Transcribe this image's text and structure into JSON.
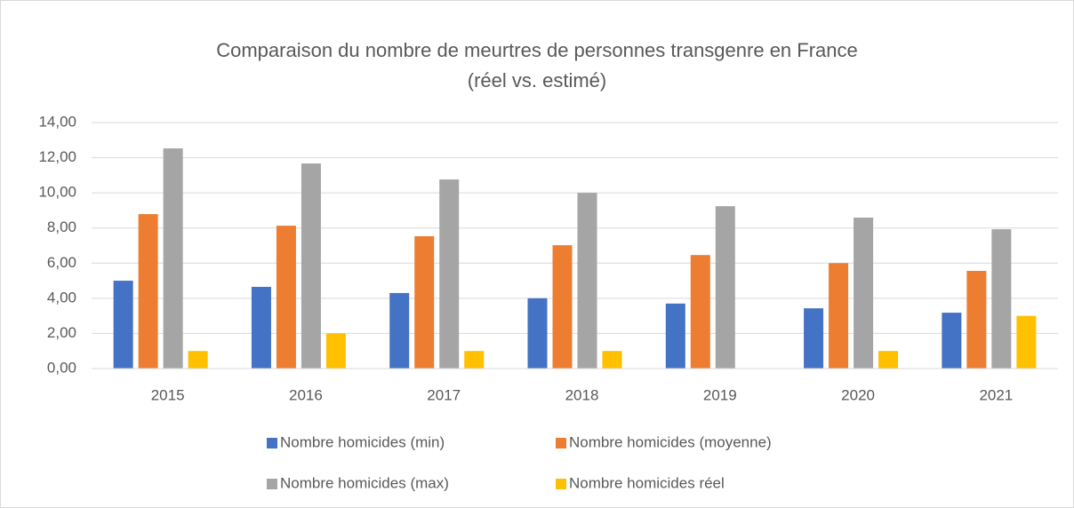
{
  "chart_data": {
    "type": "bar",
    "title": [
      "Comparaison du nombre de meurtres de personnes transgenre en France",
      "(réel vs. estimé)"
    ],
    "categories": [
      "2015",
      "2016",
      "2017",
      "2018",
      "2019",
      "2020",
      "2021"
    ],
    "series": [
      {
        "name": "Nombre homicides (min)",
        "color": "#4472c4",
        "values": [
          5.0,
          4.65,
          4.3,
          4.0,
          3.7,
          3.43,
          3.18
        ]
      },
      {
        "name": "Nombre homicides (moyenne)",
        "color": "#ed7d31",
        "values": [
          8.79,
          8.13,
          7.53,
          7.02,
          6.46,
          6.0,
          5.56
        ]
      },
      {
        "name": "Nombre homicides (max)",
        "color": "#a5a5a5",
        "values": [
          12.53,
          11.67,
          10.76,
          10.0,
          9.24,
          8.59,
          7.93
        ]
      },
      {
        "name": "Nombre homicides réel",
        "color": "#ffc000",
        "values": [
          1,
          2,
          1,
          1,
          0,
          1,
          3
        ]
      }
    ],
    "ylim": [
      0,
      14
    ],
    "yticks": [
      {
        "value": 0,
        "label": "0,00"
      },
      {
        "value": 2,
        "label": "2,00"
      },
      {
        "value": 4,
        "label": "4,00"
      },
      {
        "value": 6,
        "label": "6,00"
      },
      {
        "value": 8,
        "label": "8,00"
      },
      {
        "value": 10,
        "label": "10,00"
      },
      {
        "value": 12,
        "label": "12,00"
      },
      {
        "value": 14,
        "label": "14,00"
      }
    ],
    "grid": true,
    "legend": "bottom"
  }
}
